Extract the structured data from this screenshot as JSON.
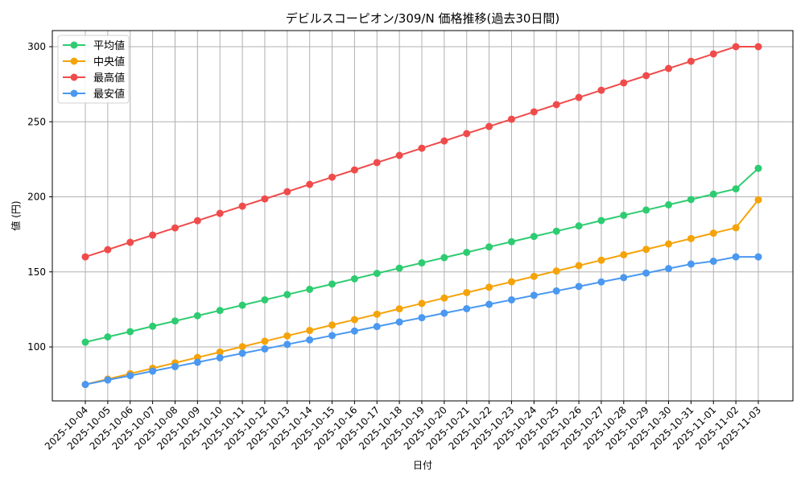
{
  "chart_data": {
    "type": "line",
    "title": "デビルスコーピオン/309/N 価格推移(過去30日間)",
    "xlabel": "日付",
    "ylabel": "値 (円)",
    "ylim": [
      64,
      311
    ],
    "yticks": [
      100,
      150,
      200,
      250,
      300
    ],
    "grid": true,
    "legend_position": "upper left",
    "x": [
      "2025-10-04",
      "2025-10-05",
      "2025-10-06",
      "2025-10-07",
      "2025-10-08",
      "2025-10-09",
      "2025-10-10",
      "2025-10-11",
      "2025-10-12",
      "2025-10-13",
      "2025-10-14",
      "2025-10-15",
      "2025-10-16",
      "2025-10-17",
      "2025-10-18",
      "2025-10-19",
      "2025-10-20",
      "2025-10-21",
      "2025-10-22",
      "2025-10-23",
      "2025-10-24",
      "2025-10-25",
      "2025-10-26",
      "2025-10-27",
      "2025-10-28",
      "2025-10-29",
      "2025-10-30",
      "2025-10-31",
      "2025-11-01",
      "2025-11-02",
      "2025-11-03"
    ],
    "series": [
      {
        "name": "平均値",
        "color": "#2ecc71",
        "values": [
          103.2,
          106.7,
          110.2,
          113.8,
          117.3,
          120.8,
          124.3,
          127.8,
          131.4,
          134.9,
          138.4,
          141.9,
          145.4,
          149.0,
          152.5,
          156.0,
          159.5,
          163.0,
          166.6,
          170.1,
          173.6,
          177.1,
          180.6,
          184.2,
          187.7,
          191.2,
          194.7,
          198.2,
          201.8,
          205.3,
          219.0
        ]
      },
      {
        "name": "中央値",
        "color": "#f5a30a",
        "values": [
          75.0,
          78.6,
          82.2,
          85.8,
          89.4,
          93.0,
          96.6,
          100.2,
          103.8,
          107.4,
          111.0,
          114.6,
          118.2,
          121.8,
          125.4,
          129.0,
          132.6,
          136.2,
          139.8,
          143.4,
          147.0,
          150.6,
          154.2,
          157.8,
          161.4,
          165.0,
          168.6,
          172.2,
          175.8,
          179.4,
          198.0
        ]
      },
      {
        "name": "最高値",
        "color": "#f04b4b",
        "values": [
          160.0,
          164.8,
          169.7,
          174.5,
          179.3,
          184.1,
          189.0,
          193.8,
          198.6,
          203.4,
          208.3,
          213.1,
          217.9,
          222.8,
          227.6,
          232.4,
          237.2,
          242.1,
          246.9,
          251.7,
          256.6,
          261.4,
          266.2,
          271.0,
          275.9,
          280.7,
          285.5,
          290.3,
          295.2,
          300.0,
          300.0
        ]
      },
      {
        "name": "最安値",
        "color": "#4a98f0",
        "values": [
          75.0,
          78.0,
          80.9,
          83.9,
          86.9,
          89.8,
          92.8,
          95.8,
          98.7,
          101.7,
          104.7,
          107.6,
          110.6,
          113.6,
          116.6,
          119.5,
          122.5,
          125.5,
          128.4,
          131.4,
          134.4,
          137.3,
          140.3,
          143.3,
          146.2,
          149.2,
          152.2,
          155.2,
          157.1,
          160.0,
          160.0
        ]
      }
    ]
  }
}
